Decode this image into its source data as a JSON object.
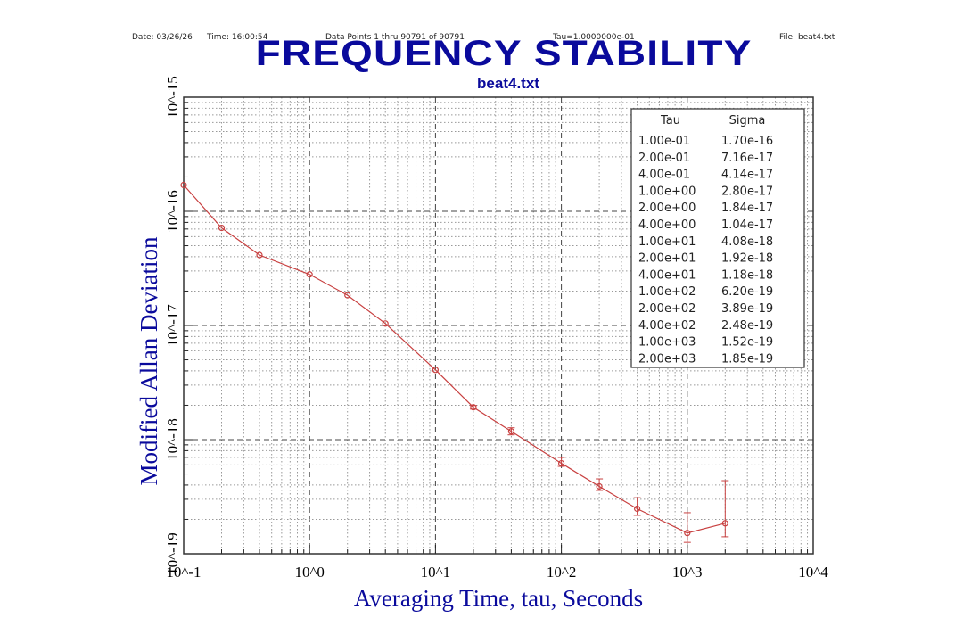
{
  "header": {
    "date": "Date: 03/26/26",
    "time": "Time: 16:00:54",
    "points": "Data Points 1 thru 90791 of 90791",
    "tau": "Tau=1.0000000e-01",
    "file": "File: beat4.txt"
  },
  "chart_data": {
    "type": "line",
    "title": "FREQUENCY STABILITY",
    "subtitle": "beat4.txt",
    "xlabel": "Averaging Time, tau, Seconds",
    "ylabel": "Modified Allan Deviation",
    "xscale": "log",
    "yscale": "log",
    "xlim": [
      0.1,
      10000
    ],
    "ylim": [
      1e-19,
      1e-15
    ],
    "x_ticks": [
      "10^-1",
      "10^0",
      "10^1",
      "10^2",
      "10^3",
      "10^4"
    ],
    "y_ticks": [
      "10^-19",
      "10^-18",
      "10^-17",
      "10^-16",
      "10^-15"
    ],
    "grid": true,
    "legend_placement": "top-right",
    "colors": {
      "series": "#c84040",
      "title": "#0a0a9c"
    },
    "table": {
      "headers": [
        "Tau",
        "Sigma"
      ],
      "rows": [
        [
          "1.00e-01",
          "1.70e-16"
        ],
        [
          "2.00e-01",
          "7.16e-17"
        ],
        [
          "4.00e-01",
          "4.14e-17"
        ],
        [
          "1.00e+00",
          "2.80e-17"
        ],
        [
          "2.00e+00",
          "1.84e-17"
        ],
        [
          "4.00e+00",
          "1.04e-17"
        ],
        [
          "1.00e+01",
          "4.08e-18"
        ],
        [
          "2.00e+01",
          "1.92e-18"
        ],
        [
          "4.00e+01",
          "1.18e-18"
        ],
        [
          "1.00e+02",
          "6.20e-19"
        ],
        [
          "2.00e+02",
          "3.89e-19"
        ],
        [
          "4.00e+02",
          "2.48e-19"
        ],
        [
          "1.00e+03",
          "1.52e-19"
        ],
        [
          "2.00e+03",
          "1.85e-19"
        ]
      ]
    },
    "series": [
      {
        "x": [
          0.1,
          0.2,
          0.4,
          1,
          2,
          4,
          10,
          20,
          40,
          100,
          200,
          400,
          1000,
          2000
        ],
        "y": [
          1.7e-16,
          7.16e-17,
          4.14e-17,
          2.8e-17,
          1.84e-17,
          1.04e-17,
          4.08e-18,
          1.92e-18,
          1.18e-18,
          6.2e-19,
          3.89e-19,
          2.48e-19,
          1.52e-19,
          1.85e-19
        ],
        "err_low": [
          null,
          null,
          null,
          null,
          null,
          null,
          null,
          1.85e-18,
          1.1e-18,
          5.83e-19,
          3.59e-19,
          2.17e-19,
          1.26e-19,
          1.41e-19
        ],
        "err_high": [
          null,
          null,
          null,
          null,
          null,
          null,
          null,
          1.99e-18,
          1.27e-18,
          6.98e-19,
          4.53e-19,
          3.1e-19,
          2.29e-19,
          4.37e-19
        ]
      }
    ]
  }
}
